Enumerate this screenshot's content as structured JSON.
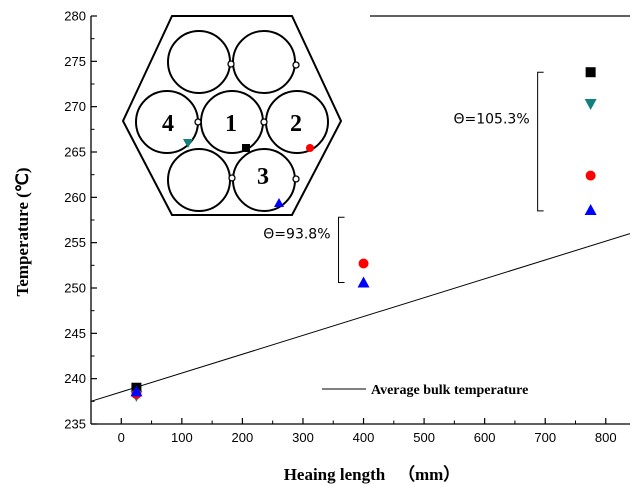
{
  "chart_data": {
    "type": "scatter",
    "xlabel": "Heaing length   （mm）",
    "ylabel": "Temperature (℃)",
    "xlim": [
      -50,
      840
    ],
    "ylim": [
      235,
      280
    ],
    "xticks": [
      0,
      100,
      200,
      300,
      400,
      500,
      600,
      700,
      800
    ],
    "yticks": [
      235,
      240,
      245,
      250,
      255,
      260,
      265,
      270,
      275,
      280
    ],
    "grid": false,
    "series": [
      {
        "marker": "square",
        "color": "#000000",
        "x": [
          25,
          775
        ],
        "y": [
          239.0,
          273.8
        ]
      },
      {
        "marker": "triangle-down",
        "color": "#138080",
        "x": [
          25,
          775
        ],
        "y": [
          238.1,
          270.3
        ]
      },
      {
        "marker": "circle",
        "color": "#ff0000",
        "x": [
          25,
          400,
          775
        ],
        "y": [
          238.3,
          252.7,
          262.4
        ]
      },
      {
        "marker": "triangle-up",
        "color": "#0000ff",
        "x": [
          25,
          400,
          775
        ],
        "y": [
          238.6,
          250.6,
          258.6
        ]
      }
    ],
    "bulk_line": {
      "name": "Average bulk temperature",
      "x": [
        -50,
        840
      ],
      "y": [
        237.5,
        256.0
      ]
    },
    "annotations": [
      {
        "text": "Θ=105.3%",
        "x": 775,
        "y_range": [
          258.5,
          273.8
        ]
      },
      {
        "text": "Θ=93.8%",
        "x": 400,
        "y_range": [
          250.6,
          257.8
        ]
      }
    ],
    "inset": {
      "rod_labels": [
        "4",
        "1",
        "2",
        "3"
      ],
      "markers": [
        "square",
        "triangle-down",
        "circle",
        "triangle-up"
      ]
    }
  }
}
